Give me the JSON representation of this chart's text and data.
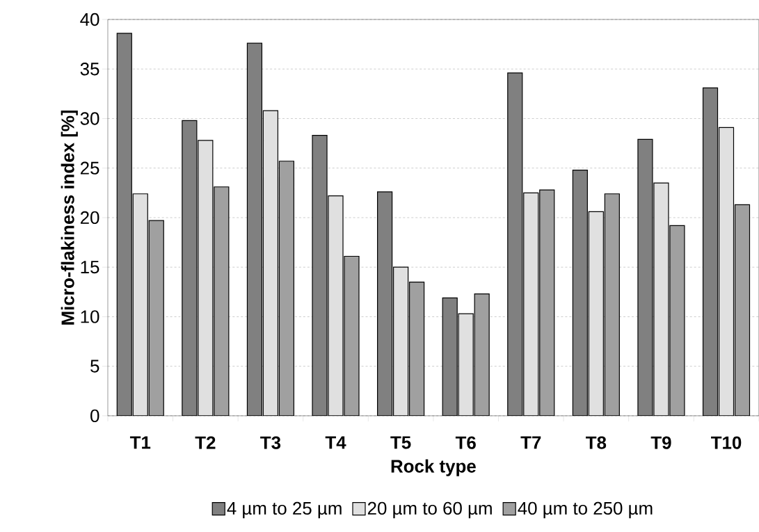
{
  "chart_data": {
    "type": "bar",
    "xlabel": "Rock type",
    "ylabel": "Micro-flakiness index [%]",
    "categories": [
      "T1",
      "T2",
      "T3",
      "T4",
      "T5",
      "T6",
      "T7",
      "T8",
      "T9",
      "T10"
    ],
    "series": [
      {
        "name": "4 µm to 25 µm",
        "color": "#808080",
        "values": [
          38.6,
          29.8,
          37.6,
          28.3,
          22.6,
          11.9,
          34.6,
          24.8,
          27.9,
          33.1
        ]
      },
      {
        "name": "20 µm to 60 µm",
        "color": "#e0e0e0",
        "values": [
          22.4,
          27.8,
          30.8,
          22.2,
          15.0,
          10.3,
          22.5,
          20.6,
          23.5,
          29.1
        ]
      },
      {
        "name": "40 µm to 250 µm",
        "color": "#a0a0a0",
        "values": [
          19.7,
          23.1,
          25.7,
          16.1,
          13.5,
          12.3,
          22.8,
          22.4,
          19.2,
          21.3
        ]
      }
    ],
    "ylim": [
      0,
      40
    ],
    "yticks": [
      0,
      5,
      10,
      15,
      20,
      25,
      30,
      35,
      40
    ],
    "grid": "y",
    "legend": "bottom"
  }
}
